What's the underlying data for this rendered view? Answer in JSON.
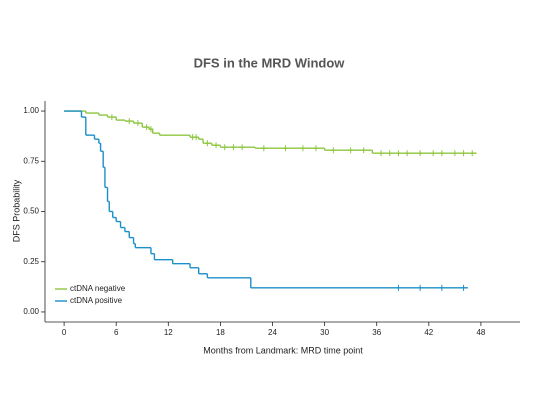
{
  "chart_data": {
    "type": "km-step",
    "title": "DFS in the MRD Window",
    "xlabel": "Months from Landmark: MRD time point",
    "ylabel": "DFS Probability",
    "xlim": [
      -2.2,
      52.5
    ],
    "ylim": [
      -0.05,
      1.05
    ],
    "xticks": [
      0,
      6,
      12,
      18,
      24,
      30,
      36,
      42,
      48
    ],
    "yticks": [
      {
        "value": 0,
        "label": "0.00"
      },
      {
        "value": 0.25,
        "label": "0.25"
      },
      {
        "value": 0.5,
        "label": "0.50"
      },
      {
        "value": 0.75,
        "label": "0.75"
      },
      {
        "value": 1,
        "label": "1.00"
      }
    ],
    "legend": "bottom-left",
    "series": [
      {
        "name": "ctDNA negative",
        "color": "#8dc63f",
        "x": [
          0,
          2.5,
          4,
          5,
          6,
          7,
          8,
          9,
          9.8,
          10.2,
          11,
          14.5,
          15.5,
          16,
          17,
          18,
          22,
          30,
          35.5,
          47.5
        ],
        "values": [
          1,
          0.99,
          0.98,
          0.97,
          0.955,
          0.95,
          0.94,
          0.92,
          0.91,
          0.89,
          0.88,
          0.87,
          0.86,
          0.84,
          0.83,
          0.82,
          0.815,
          0.805,
          0.79,
          0.79
        ],
        "censor_x": [
          5.5,
          7.5,
          8.5,
          9.5,
          10,
          14.8,
          15.2,
          16.5,
          17.5,
          18.5,
          19.5,
          20.5,
          23,
          25.5,
          27.5,
          29,
          31,
          33,
          34.5,
          36.5,
          37.5,
          38.5,
          39.5,
          41,
          42.5,
          43.5,
          45,
          46,
          47
        ],
        "censor_values": [
          0.97,
          0.95,
          0.94,
          0.92,
          0.91,
          0.87,
          0.87,
          0.84,
          0.83,
          0.82,
          0.82,
          0.82,
          0.815,
          0.815,
          0.815,
          0.815,
          0.805,
          0.805,
          0.805,
          0.79,
          0.79,
          0.79,
          0.79,
          0.79,
          0.79,
          0.79,
          0.79,
          0.79,
          0.79
        ]
      },
      {
        "name": "ctDNA positive",
        "color": "#1b8fc9",
        "x": [
          0,
          2,
          2.5,
          3.5,
          4,
          4.2,
          4.5,
          4.7,
          5,
          5.2,
          5.6,
          6,
          6.5,
          7,
          7.5,
          8,
          8.2,
          10,
          10.4,
          12.5,
          14.5,
          15.5,
          16.5,
          21.5,
          46.5
        ],
        "values": [
          1,
          0.97,
          0.88,
          0.86,
          0.84,
          0.8,
          0.72,
          0.62,
          0.55,
          0.5,
          0.47,
          0.45,
          0.42,
          0.4,
          0.37,
          0.34,
          0.32,
          0.29,
          0.26,
          0.24,
          0.22,
          0.19,
          0.17,
          0.12,
          0.12
        ],
        "censor_x": [
          38.5,
          41,
          43.5,
          46
        ],
        "censor_values": [
          0.12,
          0.12,
          0.12,
          0.12
        ]
      }
    ]
  }
}
